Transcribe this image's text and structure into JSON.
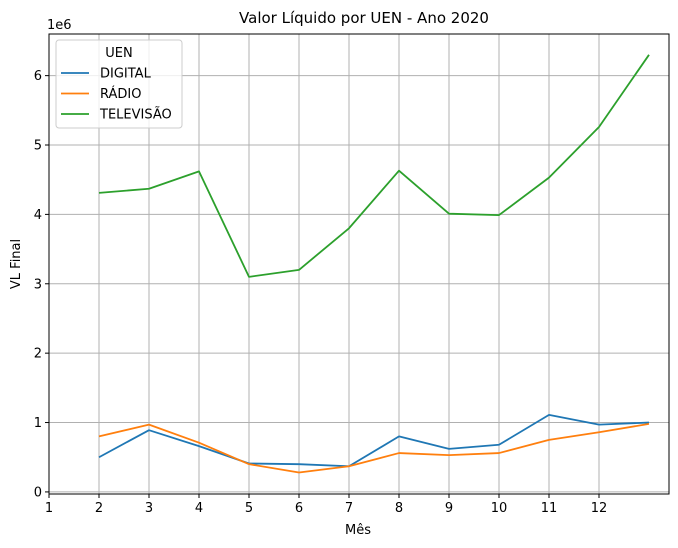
{
  "chart_data": {
    "type": "line",
    "title": "Valor Líquido por UEN - Ano 2020",
    "xlabel": "Mês",
    "ylabel": "VL Final",
    "y_multiplier": "1e6",
    "x_ticks": [
      "1",
      "2",
      "3",
      "4",
      "5",
      "6",
      "7",
      "8",
      "9",
      "10",
      "11",
      "12"
    ],
    "y_ticks": [
      "0",
      "1",
      "2",
      "3",
      "4",
      "5",
      "6"
    ],
    "xlim": [
      1,
      13.4
    ],
    "ylim": [
      -30000,
      6600000
    ],
    "grid": true,
    "legend_title": "UEN",
    "legend_position": "top-left",
    "x": [
      2,
      3,
      4,
      5,
      6,
      7,
      8,
      9,
      10,
      11,
      12,
      13
    ],
    "series": [
      {
        "name": "DIGITAL",
        "color": "#1f77b4",
        "values": [
          500000,
          890000,
          660000,
          410000,
          400000,
          370000,
          800000,
          620000,
          680000,
          1110000,
          970000,
          1000000
        ]
      },
      {
        "name": "RÁDIO",
        "color": "#ff7f0e",
        "values": [
          800000,
          970000,
          710000,
          400000,
          280000,
          370000,
          560000,
          530000,
          560000,
          750000,
          860000,
          980000
        ]
      },
      {
        "name": "TELEVISÃO",
        "color": "#2ca02c",
        "values": [
          4310000,
          4370000,
          4620000,
          3100000,
          3200000,
          3800000,
          4630000,
          4010000,
          3990000,
          4530000,
          5260000,
          6300000
        ]
      }
    ]
  }
}
